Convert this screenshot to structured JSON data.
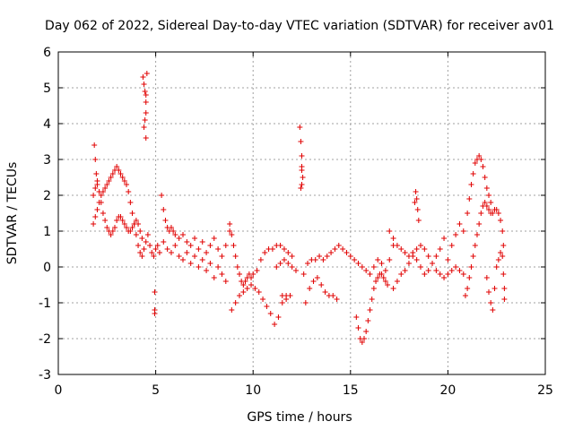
{
  "chart_data": {
    "type": "scatter",
    "title": "Day 062 of 2022, Sidereal Day-to-day VTEC variation (SDTVAR) for receiver av01",
    "xlabel": "GPS time / hours",
    "ylabel": "SDTVAR / TECUs",
    "xlim": [
      0,
      25
    ],
    "ylim": [
      -3,
      6
    ],
    "xticks": [
      "0",
      "5",
      "10",
      "15",
      "20",
      "25"
    ],
    "yticks": [
      "6",
      "5",
      "4",
      "3",
      "2",
      "1",
      "0",
      "-1",
      "-2",
      "-3"
    ],
    "grid": true,
    "marker": "+",
    "series": [
      {
        "name": "SDTVAR",
        "color": "#e00000",
        "x": [
          1.8,
          1.9,
          2.0,
          2.1,
          2.2,
          2.3,
          2.4,
          2.5,
          2.6,
          2.7,
          2.8,
          2.9,
          3.0,
          3.1,
          3.2,
          3.3,
          3.4,
          3.5,
          3.6,
          3.7,
          3.8,
          3.9,
          4.0,
          4.1,
          4.2,
          4.3,
          1.8,
          1.9,
          2.0,
          2.1,
          2.2,
          2.3,
          2.4,
          2.5,
          2.6,
          2.7,
          2.8,
          2.9,
          3.0,
          3.1,
          3.2,
          3.3,
          3.4,
          3.5,
          3.6,
          3.7,
          3.8,
          3.9,
          4.0,
          4.1,
          4.2,
          4.3,
          1.85,
          1.9,
          1.95,
          2.0,
          4.35,
          4.4,
          4.45,
          4.5,
          4.5,
          4.45,
          4.4,
          4.5,
          4.55,
          4.5,
          4.4,
          4.5,
          4.6,
          4.7,
          4.8,
          4.9,
          5.0,
          5.1,
          5.2,
          4.95,
          4.95,
          4.95,
          5.3,
          5.4,
          5.5,
          5.6,
          5.7,
          5.8,
          5.9,
          6.0,
          6.2,
          6.4,
          6.6,
          6.8,
          7.0,
          7.2,
          7.4,
          7.6,
          7.8,
          8.0,
          8.2,
          8.4,
          8.6,
          8.8,
          5.4,
          5.6,
          5.8,
          6.0,
          6.2,
          6.4,
          6.6,
          6.8,
          7.0,
          7.2,
          7.4,
          7.6,
          7.8,
          8.0,
          8.2,
          8.4,
          8.6,
          8.8,
          8.9,
          9.0,
          9.1,
          9.2,
          9.3,
          9.4,
          9.5,
          9.6,
          9.7,
          9.8,
          9.9,
          10.0,
          10.2,
          10.4,
          10.6,
          10.8,
          11.0,
          11.2,
          11.4,
          11.6,
          11.8,
          12.0,
          8.9,
          9.1,
          9.3,
          9.5,
          9.7,
          9.9,
          10.1,
          10.3,
          10.5,
          10.7,
          10.9,
          11.1,
          11.3,
          11.5,
          11.7,
          11.2,
          11.4,
          11.6,
          11.8,
          12.0,
          12.2,
          11.5,
          11.7,
          11.9,
          12.4,
          12.45,
          12.5,
          12.5,
          12.55,
          12.5,
          12.45,
          12.5,
          12.6,
          12.8,
          13.0,
          13.2,
          13.4,
          13.6,
          13.8,
          14.0,
          14.2,
          14.4,
          14.6,
          14.8,
          15.0,
          15.2,
          15.4,
          15.6,
          15.8,
          16.0,
          16.2,
          16.4,
          16.6,
          16.8,
          17.0,
          17.2,
          12.7,
          12.9,
          13.1,
          13.3,
          13.5,
          13.7,
          13.9,
          14.1,
          14.3,
          15.3,
          15.4,
          15.5,
          15.6,
          15.7,
          15.8,
          15.9,
          16.0,
          16.1,
          16.2,
          16.3,
          16.4,
          16.5,
          16.6,
          16.7,
          16.8,
          16.9,
          17.0,
          17.2,
          17.4,
          17.6,
          17.8,
          18.0,
          18.2,
          18.4,
          18.6,
          18.8,
          19.0,
          19.2,
          19.4,
          19.6,
          19.8,
          17.2,
          17.4,
          17.6,
          17.8,
          18.0,
          18.2,
          18.4,
          18.6,
          18.8,
          19.0,
          19.2,
          19.4,
          19.6,
          19.8,
          20.0,
          20.2,
          20.4,
          20.6,
          20.8,
          18.3,
          18.35,
          18.4,
          18.45,
          18.5,
          20.0,
          20.2,
          20.4,
          20.6,
          20.8,
          21.0,
          21.1,
          21.2,
          21.3,
          21.4,
          21.5,
          21.6,
          21.7,
          21.8,
          21.9,
          22.0,
          22.1,
          22.2,
          20.9,
          21.0,
          21.1,
          21.2,
          21.3,
          21.4,
          21.5,
          21.6,
          21.7,
          21.8,
          21.9,
          22.0,
          22.1,
          22.2,
          22.3,
          22.4,
          22.5,
          22.6,
          22.7,
          22.8,
          22.0,
          22.1,
          22.2,
          22.3,
          22.4,
          22.5,
          22.6,
          22.7,
          22.8,
          22.85,
          22.9,
          22.9,
          22.85
        ],
        "y": [
          1.2,
          1.4,
          1.6,
          1.8,
          2.0,
          2.1,
          2.2,
          2.3,
          2.4,
          2.5,
          2.6,
          2.7,
          2.8,
          2.7,
          2.6,
          2.5,
          2.4,
          2.3,
          2.1,
          1.8,
          1.5,
          1.2,
          0.9,
          0.6,
          0.4,
          0.3,
          2.0,
          2.2,
          2.3,
          2.1,
          1.8,
          1.5,
          1.3,
          1.1,
          1.0,
          0.9,
          1.0,
          1.1,
          1.3,
          1.4,
          1.4,
          1.3,
          1.2,
          1.1,
          1.0,
          1.0,
          1.1,
          1.2,
          1.3,
          1.2,
          1.0,
          0.8,
          3.4,
          3.0,
          2.6,
          2.4,
          5.3,
          5.1,
          4.9,
          4.6,
          4.3,
          4.1,
          3.9,
          3.6,
          5.4,
          4.8,
          0.5,
          0.7,
          0.9,
          0.6,
          0.4,
          0.3,
          0.5,
          0.6,
          0.4,
          -0.7,
          -1.2,
          -1.3,
          2.0,
          1.6,
          1.3,
          1.1,
          1.0,
          1.1,
          1.0,
          0.9,
          0.8,
          0.9,
          0.7,
          0.6,
          0.8,
          0.5,
          0.7,
          0.4,
          0.6,
          0.8,
          0.5,
          0.3,
          0.6,
          1.0,
          0.7,
          0.5,
          0.4,
          0.6,
          0.3,
          0.2,
          0.4,
          0.1,
          0.3,
          0.0,
          0.2,
          -0.1,
          0.1,
          -0.3,
          0.0,
          -0.2,
          -0.4,
          1.2,
          0.9,
          0.6,
          0.3,
          0.0,
          -0.2,
          -0.4,
          -0.5,
          -0.4,
          -0.3,
          -0.2,
          -0.3,
          -0.2,
          -0.1,
          0.2,
          0.4,
          0.5,
          0.5,
          0.6,
          0.6,
          0.5,
          0.4,
          0.3,
          -1.2,
          -1.0,
          -0.8,
          -0.7,
          -0.6,
          -0.5,
          -0.6,
          -0.7,
          -0.9,
          -1.1,
          -1.3,
          -1.6,
          -1.4,
          -1.0,
          -0.8,
          0.0,
          0.1,
          0.2,
          0.1,
          0.0,
          -0.1,
          -0.8,
          -0.9,
          -0.8,
          3.9,
          3.5,
          3.1,
          2.8,
          2.5,
          2.3,
          2.2,
          2.7,
          -0.2,
          0.1,
          0.2,
          0.2,
          0.3,
          0.2,
          0.3,
          0.4,
          0.5,
          0.6,
          0.5,
          0.4,
          0.3,
          0.2,
          0.1,
          0.0,
          -0.1,
          -0.2,
          0.0,
          0.2,
          0.1,
          -0.1,
          0.2,
          0.6,
          -1.0,
          -0.6,
          -0.4,
          -0.3,
          -0.5,
          -0.7,
          -0.8,
          -0.8,
          -0.9,
          -1.4,
          -1.7,
          -2.0,
          -2.1,
          -2.0,
          -1.8,
          -1.5,
          -1.2,
          -0.9,
          -0.6,
          -0.4,
          -0.3,
          -0.2,
          -0.2,
          -0.3,
          -0.4,
          -0.5,
          1.0,
          0.8,
          0.6,
          0.5,
          0.4,
          0.3,
          0.4,
          0.2,
          0.0,
          -0.2,
          -0.1,
          0.1,
          0.3,
          0.5,
          0.8,
          -0.6,
          -0.4,
          -0.2,
          -0.1,
          0.1,
          0.3,
          0.5,
          0.6,
          0.5,
          0.3,
          0.1,
          -0.1,
          -0.2,
          -0.3,
          -0.2,
          -0.1,
          0.0,
          -0.1,
          -0.2,
          1.8,
          2.1,
          1.9,
          1.6,
          1.3,
          0.2,
          0.6,
          0.9,
          1.2,
          1.0,
          1.5,
          1.9,
          2.3,
          2.6,
          2.9,
          3.0,
          3.1,
          3.0,
          2.8,
          2.5,
          2.2,
          2.0,
          1.8,
          -0.8,
          -0.6,
          -0.3,
          0.0,
          0.3,
          0.6,
          0.9,
          1.2,
          1.5,
          1.7,
          1.8,
          1.7,
          1.6,
          1.5,
          1.5,
          1.6,
          1.6,
          1.5,
          1.3,
          1.0,
          -0.3,
          -0.7,
          -1.0,
          -1.2,
          -0.6,
          0.0,
          0.2,
          0.4,
          0.3,
          -0.2,
          -0.6,
          -0.9,
          0.6
        ]
      }
    ]
  }
}
